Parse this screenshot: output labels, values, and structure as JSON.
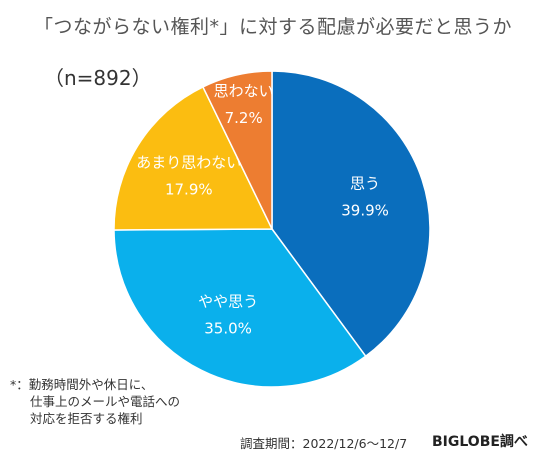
{
  "title": "「つながらない権利*」に対する配慮が必要だと思うか",
  "sample_size": "（n=892）",
  "chart_data": {
    "type": "pie",
    "title": "「つながらない権利*」に対する配慮が必要だと思うか",
    "slices": [
      {
        "label": "思う",
        "value": 39.9,
        "display": "39.9%",
        "color": "#0a6ebd",
        "text_color": "#ffffff"
      },
      {
        "label": "やや思う",
        "value": 35.0,
        "display": "35.0%",
        "color": "#0ab0ec",
        "text_color": "#ffffff"
      },
      {
        "label": "あまり思わない",
        "value": 17.9,
        "display": "17.9%",
        "color": "#fbbd11",
        "text_color": "#ffffff"
      },
      {
        "label": "思わない",
        "value": 7.2,
        "display": "7.2%",
        "color": "#ed7d31",
        "text_color": "#ffffff"
      }
    ]
  },
  "footnote": {
    "mark": "*：",
    "lines": [
      "勤務時間外や休日に、",
      "仕事上のメールや電話への",
      "対応を拒否する権利"
    ]
  },
  "survey_period": "調査期間：2022/12/6〜12/7",
  "source": "BIGLOBE調べ"
}
